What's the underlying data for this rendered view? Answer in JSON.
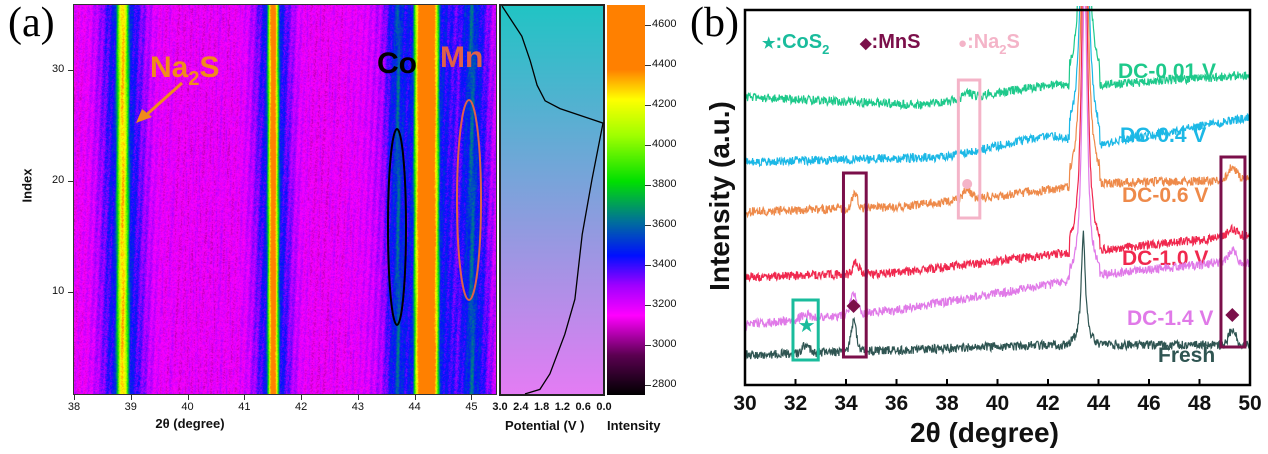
{
  "panel_a": {
    "label": "(a)"
  },
  "panel_b": {
    "label": "(b)"
  },
  "chart_data": [
    {
      "type": "heatmap",
      "xlabel": "2θ (degree)",
      "ylabel": "Index",
      "xlim": [
        38,
        45.45
      ],
      "ylim": [
        0.8,
        35.8
      ],
      "xticks": [
        "38",
        "39",
        "40",
        "41",
        "42",
        "43",
        "44",
        "45"
      ],
      "yticks": [
        "10",
        "20",
        "30"
      ],
      "peaks": [
        {
          "center": 38.85,
          "intensity": 4300
        },
        {
          "center": 41.5,
          "intensity": 4600
        },
        {
          "center": 44.2,
          "intensity": 4650
        },
        {
          "center": 43.7,
          "intensity": 3600
        },
        {
          "center": 45.0,
          "intensity": 3600
        }
      ],
      "annotations": [
        {
          "text": "Na",
          "sub": "2",
          "text2": "S",
          "color": "#f08a1c"
        },
        {
          "text": "Co",
          "color": "#000000"
        },
        {
          "text": "Mn",
          "color": "#e0604a"
        }
      ],
      "colorbar": {
        "label": "Intensity",
        "range": [
          2750,
          4700
        ],
        "ticks": [
          "4600",
          "4400",
          "4200",
          "4000",
          "3800",
          "3600",
          "3400",
          "3200",
          "3000",
          "2800"
        ],
        "colormap": [
          {
            "v": 2750,
            "c": "#000000"
          },
          {
            "v": 2950,
            "c": "#5a0050"
          },
          {
            "v": 3150,
            "c": "#ff00ff"
          },
          {
            "v": 3300,
            "c": "#a000ff"
          },
          {
            "v": 3450,
            "c": "#0010ff"
          },
          {
            "v": 3620,
            "c": "#00709a"
          },
          {
            "v": 3820,
            "c": "#00e000"
          },
          {
            "v": 4050,
            "c": "#a0ff00"
          },
          {
            "v": 4230,
            "c": "#ffff00"
          },
          {
            "v": 4380,
            "c": "#ff8000"
          },
          {
            "v": 4700,
            "c": "#ff8000"
          }
        ]
      }
    },
    {
      "type": "line",
      "xlabel": "Potential (V )",
      "xlim": [
        3.0,
        0.0
      ],
      "xticks": [
        "3.0",
        "2.4",
        "1.8",
        "1.2",
        "0.6",
        "0.0"
      ],
      "ylim": [
        0.8,
        35.8
      ],
      "background": {
        "top": "#20c4c4",
        "bottom": "#e47cf4"
      },
      "series": [
        {
          "points": [
            [
              2.28,
              0.9
            ],
            [
              1.85,
              1.3
            ],
            [
              1.56,
              2.7
            ],
            [
              1.13,
              6.25
            ],
            [
              0.84,
              9.4
            ],
            [
              0.63,
              15.2
            ],
            [
              0.35,
              20.1
            ],
            [
              0.03,
              25.2
            ],
            [
              0.4,
              25.6
            ],
            [
              1.27,
              26.5
            ],
            [
              1.7,
              27.2
            ],
            [
              1.93,
              28.6
            ],
            [
              2.13,
              30.8
            ],
            [
              2.37,
              33.0
            ],
            [
              2.94,
              35.7
            ]
          ]
        }
      ]
    },
    {
      "type": "line",
      "xlabel": "2θ (degree)",
      "ylabel": "Intensity (a.u.)",
      "xlim": [
        30,
        50
      ],
      "ylim": [
        0,
        375
      ],
      "xticks": [
        "30",
        "32",
        "34",
        "36",
        "38",
        "40",
        "42",
        "44",
        "46",
        "48",
        "50"
      ],
      "legend": [
        {
          "symbol": "★",
          "text": ":CoS",
          "sub": "2",
          "color": "#1abc9c"
        },
        {
          "symbol": "◆",
          "text": ":MnS",
          "sub": "",
          "color": "#7b0f4a"
        },
        {
          "symbol": "●",
          "text": ":Na",
          "sub": "2",
          "text2": "S",
          "color": "#f4b4c8"
        }
      ],
      "series": [
        {
          "name": "DC-0.01 V",
          "color": "#1ec98b",
          "baseline": [
            [
              30,
              288
            ],
            [
              37,
              280
            ],
            [
              42,
              300
            ],
            [
              44,
              300
            ],
            [
              50,
              310
            ]
          ],
          "peaks": [
            [
              43.45,
              400,
              0.14
            ],
            [
              38.8,
              6,
              0.2
            ]
          ]
        },
        {
          "name": "DC-0.4 V",
          "color": "#1cb8e6",
          "baseline": [
            [
              30,
              223
            ],
            [
              38,
              228
            ],
            [
              42,
              250
            ],
            [
              44,
              240
            ],
            [
              50,
              268
            ]
          ],
          "peaks": [
            [
              43.45,
              400,
              0.14
            ]
          ]
        },
        {
          "name": "DC-0.6 V",
          "color": "#ee8a4a",
          "baseline": [
            [
              30,
              173
            ],
            [
              36,
              178
            ],
            [
              42,
              195
            ],
            [
              44,
              202
            ],
            [
              50,
              205
            ]
          ],
          "peaks": [
            [
              43.45,
              400,
              0.13
            ],
            [
              34.35,
              15,
              0.15
            ],
            [
              38.8,
              10,
              0.2
            ],
            [
              49.3,
              14,
              0.25
            ]
          ]
        },
        {
          "name": "DC-1.0 V",
          "color": "#f0284e",
          "baseline": [
            [
              30,
              108
            ],
            [
              36,
              112
            ],
            [
              42,
              130
            ],
            [
              44,
              135
            ],
            [
              50,
              150
            ]
          ],
          "peaks": [
            [
              43.45,
              400,
              0.12
            ],
            [
              34.4,
              12,
              0.15
            ],
            [
              49.3,
              8,
              0.25
            ]
          ]
        },
        {
          "name": "DC-1.4 V",
          "color": "#e07ae8",
          "baseline": [
            [
              30,
              60
            ],
            [
              36,
              75
            ],
            [
              42,
              100
            ],
            [
              44,
              110
            ],
            [
              49,
              123
            ],
            [
              50,
              122
            ]
          ],
          "peaks": [
            [
              43.45,
              300,
              0.12
            ],
            [
              34.3,
              20,
              0.18
            ],
            [
              49.3,
              12,
              0.22
            ],
            [
              32.4,
              5,
              0.25
            ]
          ]
        },
        {
          "name": "Fresh",
          "color": "#2f5552",
          "baseline": [
            [
              30,
              30
            ],
            [
              36,
              35
            ],
            [
              42,
              40
            ],
            [
              44,
              40
            ],
            [
              50,
              40
            ]
          ],
          "peaks": [
            [
              43.4,
              110,
              0.1
            ],
            [
              34.3,
              30,
              0.15
            ],
            [
              49.3,
              15,
              0.2
            ],
            [
              32.4,
              8,
              0.2
            ]
          ]
        }
      ],
      "markers": [
        {
          "type": "star",
          "x": 32.4,
          "y": 60,
          "color": "#1abc9c"
        },
        {
          "type": "diamond",
          "x": 34.3,
          "y": 79,
          "color": "#7b0f4a"
        },
        {
          "type": "diamond",
          "x": 49.3,
          "y": 70,
          "color": "#7b0f4a"
        },
        {
          "type": "circle",
          "x": 38.8,
          "y": 201,
          "color": "#f4b4c8"
        }
      ],
      "boxes": [
        {
          "x": [
            31.9,
            32.9
          ],
          "y": [
            25,
            85
          ],
          "color": "#1abc9c"
        },
        {
          "x": [
            33.9,
            34.8
          ],
          "y": [
            28,
            212
          ],
          "color": "#7b0f4a"
        },
        {
          "x": [
            38.45,
            39.3
          ],
          "y": [
            167,
            305
          ],
          "color": "#f4b4c8"
        },
        {
          "x": [
            48.85,
            49.8
          ],
          "y": [
            38,
            228
          ],
          "color": "#7b0f4a"
        }
      ]
    }
  ]
}
